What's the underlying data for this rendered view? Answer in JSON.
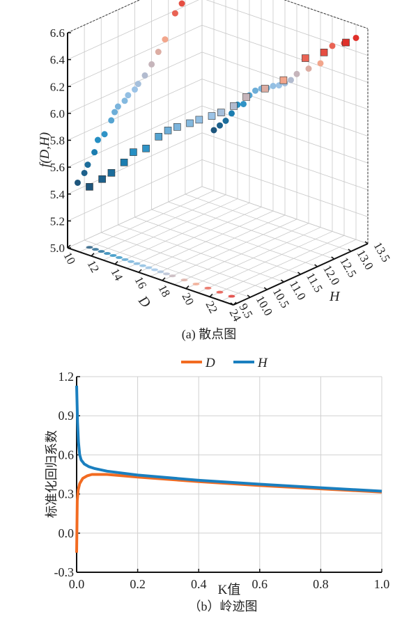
{
  "chart_data": [
    {
      "type": "scatter",
      "subtype": "3d-scatter",
      "caption": "(a) 散点图",
      "zlabel": "f(D,H)",
      "xlabel": "D",
      "ylabel": "H",
      "xlim": [
        10,
        24
      ],
      "ylim": [
        9.5,
        13.5
      ],
      "zlim": [
        5.0,
        6.6
      ],
      "xticks": [
        "10",
        "12",
        "14",
        "16",
        "18",
        "20",
        "22",
        "24"
      ],
      "yticks": [
        "9.5",
        "10.0",
        "10.5",
        "11.0",
        "11.5",
        "12.0",
        "12.5",
        "13.0",
        "13.5"
      ],
      "zticks": [
        "5.0",
        "5.2",
        "5.4",
        "5.6",
        "5.8",
        "6.0",
        "6.2",
        "6.4",
        "6.6"
      ],
      "color_low": "#1f4a6e",
      "color_mid": "#1a8ac0",
      "color_light": "#9cc3e6",
      "color_pink": "#f4a58a",
      "color_high": "#e0302a",
      "points": [
        [
          11,
          9.8,
          5.45
        ],
        [
          11.5,
          10.0,
          5.5
        ],
        [
          12,
          10.1,
          5.55
        ],
        [
          12.5,
          10.3,
          5.62
        ],
        [
          13,
          10.4,
          5.7
        ],
        [
          13.5,
          10.6,
          5.72
        ],
        [
          14,
          10.8,
          5.8
        ],
        [
          14.5,
          10.9,
          5.85
        ],
        [
          15,
          11.0,
          5.88
        ],
        [
          15.5,
          11.2,
          5.9
        ],
        [
          16,
          11.3,
          5.93
        ],
        [
          16.5,
          11.5,
          5.95
        ],
        [
          17,
          11.6,
          5.98
        ],
        [
          17.5,
          11.8,
          6.02
        ],
        [
          18,
          12.0,
          6.08
        ],
        [
          19,
          12.2,
          6.15
        ],
        [
          20,
          12.4,
          6.22
        ],
        [
          21,
          12.7,
          6.38
        ],
        [
          22,
          12.9,
          6.43
        ],
        [
          23,
          13.2,
          6.5
        ]
      ]
    },
    {
      "type": "line",
      "caption": "（b）岭迹图",
      "xlabel": "K值",
      "ylabel": "标准化回归系数",
      "xlim": [
        0,
        1.0
      ],
      "ylim": [
        -0.3,
        1.2
      ],
      "xticks": [
        "0.0",
        "0.2",
        "0.4",
        "0.6",
        "0.8",
        "1.0"
      ],
      "yticks": [
        "-0.3",
        "0.0",
        "0.3",
        "0.6",
        "0.9",
        "1.2"
      ],
      "grid": true,
      "legend": "top-center",
      "series": [
        {
          "name": "D",
          "color": "#f26b21",
          "x": [
            0,
            0.002,
            0.005,
            0.01,
            0.02,
            0.035,
            0.05,
            0.1,
            0.2,
            0.4,
            0.6,
            0.8,
            1.0
          ],
          "y": [
            -0.15,
            0.25,
            0.33,
            0.38,
            0.42,
            0.44,
            0.45,
            0.45,
            0.43,
            0.395,
            0.365,
            0.34,
            0.315
          ]
        },
        {
          "name": "H",
          "color": "#1a7fbf",
          "x": [
            0,
            0.003,
            0.006,
            0.01,
            0.015,
            0.025,
            0.04,
            0.06,
            0.1,
            0.2,
            0.4,
            0.6,
            0.8,
            1.0
          ],
          "y": [
            1.13,
            0.85,
            0.7,
            0.6,
            0.56,
            0.53,
            0.51,
            0.495,
            0.475,
            0.445,
            0.405,
            0.375,
            0.348,
            0.322
          ]
        }
      ]
    }
  ]
}
